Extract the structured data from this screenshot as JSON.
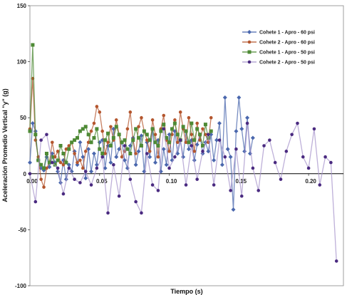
{
  "chart_data": {
    "type": "line",
    "title": "",
    "xlabel": "Tiempo (s)",
    "ylabel": "Aceleración Promedio Vertical \"y\" (g)",
    "xlim": [
      0,
      0.225
    ],
    "ylim": [
      -100,
      150
    ],
    "xticks": [
      0.0,
      0.05,
      0.1,
      0.15,
      0.2
    ],
    "xtick_labels": [
      "0.00",
      "0.05",
      "0.10",
      "0.15",
      "0.20"
    ],
    "yticks": [
      -100,
      -50,
      0,
      50,
      100,
      150
    ],
    "ytick_labels": [
      "-100",
      "-50",
      "0",
      "50",
      "100",
      "150"
    ],
    "grid": false,
    "legend": "top-right",
    "series": [
      {
        "name": "Cohete 1 - Apro - 60 psi",
        "color": "#4a67ad",
        "marker": "diamond",
        "x": [
          0.0,
          0.002,
          0.004,
          0.006,
          0.008,
          0.01,
          0.012,
          0.014,
          0.016,
          0.018,
          0.02,
          0.022,
          0.024,
          0.026,
          0.028,
          0.03,
          0.032,
          0.034,
          0.036,
          0.038,
          0.04,
          0.042,
          0.044,
          0.046,
          0.048,
          0.05,
          0.052,
          0.054,
          0.056,
          0.058,
          0.06,
          0.062,
          0.064,
          0.066,
          0.068,
          0.07,
          0.072,
          0.074,
          0.076,
          0.078,
          0.08,
          0.082,
          0.084,
          0.086,
          0.088,
          0.09,
          0.092,
          0.094,
          0.096,
          0.098,
          0.1,
          0.102,
          0.104,
          0.106,
          0.108,
          0.11,
          0.112,
          0.114,
          0.116,
          0.118,
          0.12,
          0.122,
          0.124,
          0.126,
          0.128,
          0.13,
          0.132,
          0.134,
          0.136,
          0.138,
          0.14,
          0.142,
          0.144,
          0.146,
          0.148,
          0.15,
          0.152,
          0.154,
          0.156,
          0.158,
          0.16
        ],
        "y": [
          10,
          45,
          38,
          12,
          5,
          3,
          15,
          6,
          18,
          10,
          2,
          -8,
          12,
          -5,
          8,
          2,
          20,
          8,
          28,
          15,
          -4,
          22,
          2,
          18,
          8,
          28,
          30,
          5,
          25,
          10,
          40,
          15,
          22,
          28,
          12,
          5,
          25,
          32,
          8,
          20,
          34,
          2,
          28,
          15,
          40,
          10,
          30,
          2,
          22,
          8,
          35,
          12,
          38,
          18,
          30,
          15,
          38,
          22,
          30,
          12,
          26,
          35,
          18,
          28,
          20,
          35,
          12,
          30,
          45,
          8,
          68,
          22,
          15,
          -32,
          38,
          68,
          40,
          20,
          50,
          18,
          32
        ]
      },
      {
        "name": "Cohete 2 - Apro - 60 psi",
        "color": "#b4562e",
        "marker": "circle",
        "x": [
          0.0,
          0.002,
          0.004,
          0.006,
          0.008,
          0.01,
          0.012,
          0.014,
          0.016,
          0.018,
          0.02,
          0.022,
          0.024,
          0.026,
          0.028,
          0.03,
          0.032,
          0.034,
          0.036,
          0.038,
          0.04,
          0.042,
          0.044,
          0.046,
          0.048,
          0.05,
          0.052,
          0.054,
          0.056,
          0.058,
          0.06,
          0.062,
          0.064,
          0.066,
          0.068,
          0.07,
          0.072,
          0.074,
          0.076,
          0.078,
          0.08,
          0.082,
          0.084,
          0.086,
          0.088,
          0.09,
          0.092,
          0.094,
          0.096,
          0.098,
          0.1,
          0.102,
          0.104,
          0.106,
          0.108,
          0.11,
          0.112,
          0.114,
          0.116,
          0.118,
          0.12,
          0.122,
          0.124,
          0.126,
          0.128,
          0.13
        ],
        "y": [
          40,
          85,
          30,
          15,
          -5,
          -12,
          5,
          10,
          28,
          15,
          20,
          10,
          8,
          22,
          25,
          28,
          18,
          10,
          12,
          5,
          20,
          28,
          38,
          45,
          60,
          55,
          38,
          18,
          28,
          42,
          30,
          48,
          35,
          15,
          20,
          40,
          55,
          30,
          18,
          42,
          50,
          38,
          30,
          20,
          48,
          35,
          15,
          40,
          52,
          30,
          20,
          35,
          48,
          28,
          55,
          40,
          28,
          50,
          35,
          20,
          45,
          30,
          40,
          35,
          28,
          50
        ]
      },
      {
        "name": "Cohete 1 - Apro - 50 psi",
        "color": "#4e8a35",
        "marker": "square",
        "x": [
          0.0,
          0.002,
          0.004,
          0.006,
          0.008,
          0.01,
          0.012,
          0.014,
          0.016,
          0.018,
          0.02,
          0.022,
          0.024,
          0.026,
          0.028,
          0.03,
          0.032,
          0.034,
          0.036,
          0.038,
          0.04,
          0.042,
          0.044,
          0.046,
          0.048,
          0.05,
          0.052,
          0.054,
          0.056,
          0.058,
          0.06,
          0.062,
          0.064,
          0.066,
          0.068,
          0.07,
          0.072,
          0.074,
          0.076,
          0.078,
          0.08,
          0.082,
          0.084,
          0.086,
          0.088,
          0.09,
          0.092,
          0.094,
          0.096,
          0.098,
          0.1,
          0.102,
          0.104,
          0.106,
          0.108,
          0.11,
          0.112,
          0.114,
          0.116,
          0.118,
          0.12,
          0.122,
          0.124,
          0.126,
          0.128,
          0.13
        ],
        "y": [
          38,
          115,
          35,
          12,
          8,
          5,
          18,
          10,
          15,
          8,
          12,
          25,
          18,
          10,
          22,
          28,
          30,
          32,
          38,
          40,
          42,
          35,
          28,
          32,
          40,
          22,
          18,
          30,
          36,
          25,
          32,
          42,
          35,
          28,
          30,
          22,
          18,
          30,
          40,
          32,
          25,
          38,
          35,
          30,
          40,
          28,
          25,
          38,
          44,
          32,
          28,
          40,
          45,
          35,
          30,
          42,
          38,
          28,
          45,
          30,
          40,
          35,
          25,
          44,
          32,
          38
        ]
      },
      {
        "name": "Cohete 2 - Apro - 50 psi",
        "color": "#4a2a80",
        "line_color": "#a896cc",
        "marker": "circle",
        "x": [
          0.0,
          0.004,
          0.008,
          0.012,
          0.016,
          0.02,
          0.024,
          0.028,
          0.032,
          0.036,
          0.04,
          0.044,
          0.048,
          0.052,
          0.056,
          0.06,
          0.064,
          0.068,
          0.072,
          0.076,
          0.08,
          0.084,
          0.088,
          0.092,
          0.096,
          0.1,
          0.104,
          0.108,
          0.112,
          0.116,
          0.12,
          0.124,
          0.128,
          0.132,
          0.136,
          0.14,
          0.144,
          0.148,
          0.152,
          0.156,
          0.16,
          0.164,
          0.168,
          0.172,
          0.176,
          0.18,
          0.184,
          0.188,
          0.192,
          0.196,
          0.2,
          0.204,
          0.208,
          0.212,
          0.216,
          0.22
        ],
        "y": [
          0,
          -25,
          30,
          35,
          10,
          5,
          -18,
          5,
          -5,
          -8,
          2,
          -10,
          5,
          15,
          -35,
          8,
          -20,
          25,
          -5,
          -25,
          -35,
          18,
          -10,
          -15,
          40,
          5,
          15,
          30,
          -10,
          25,
          -5,
          20,
          35,
          -10,
          30,
          15,
          -15,
          22,
          -20,
          45,
          5,
          -15,
          25,
          30,
          10,
          -5,
          20,
          35,
          45,
          15,
          5,
          40,
          -10,
          15,
          10,
          -78
        ]
      }
    ]
  }
}
